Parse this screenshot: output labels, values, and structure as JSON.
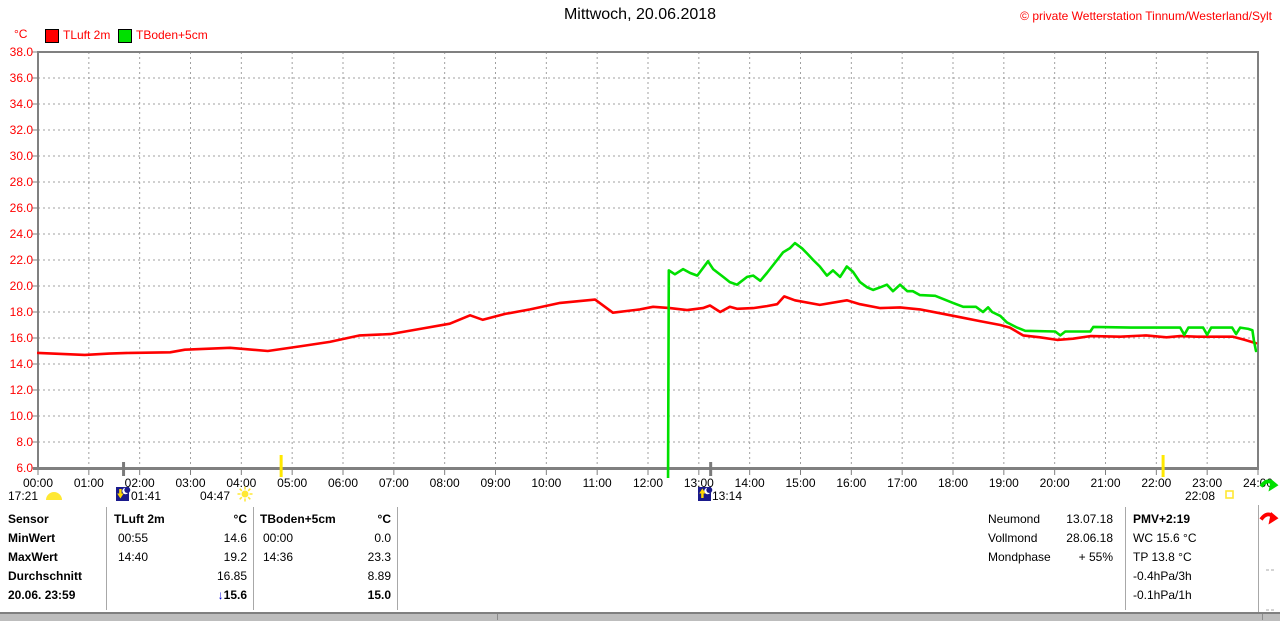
{
  "header": {
    "title": "Mittwoch, 20.06.2018",
    "copyright": "© private Wetterstation Tinnum/Westerland/Sylt"
  },
  "legend": {
    "unit": "°C"
  },
  "chart_data": {
    "type": "line",
    "title": "Mittwoch, 20.06.2018",
    "ylabel": "°C",
    "ylim": [
      6.0,
      38.0
    ],
    "ytick_step": 2.0,
    "ytick_labels": [
      "38.0",
      "36.0",
      "34.0",
      "32.0",
      "30.0",
      "28.0",
      "26.0",
      "24.0",
      "22.0",
      "20.0",
      "18.0",
      "16.0",
      "14.0",
      "12.0",
      "10.0",
      "8.0",
      "6.0"
    ],
    "xlim_hours": [
      0,
      24
    ],
    "xtick_labels": [
      "00:00",
      "01:00",
      "02:00",
      "03:00",
      "04:00",
      "05:00",
      "06:00",
      "07:00",
      "08:00",
      "09:00",
      "10:00",
      "11:00",
      "12:00",
      "13:00",
      "14:00",
      "15:00",
      "16:00",
      "17:00",
      "18:00",
      "19:00",
      "20:00",
      "21:00",
      "22:00",
      "23:00",
      "24:00"
    ],
    "grid": "dashed",
    "legend_position": "top-left",
    "series": [
      {
        "name": "TLuft 2m",
        "color": "#ff0000",
        "points": [
          [
            0,
            14.85
          ],
          [
            0.92,
            14.7
          ],
          [
            1.4,
            14.8
          ],
          [
            1.81,
            14.85
          ],
          [
            2.6,
            14.9
          ],
          [
            2.89,
            15.1
          ],
          [
            3.78,
            15.25
          ],
          [
            4.52,
            15.0
          ],
          [
            5.15,
            15.35
          ],
          [
            5.74,
            15.7
          ],
          [
            6.33,
            16.2
          ],
          [
            6.93,
            16.3
          ],
          [
            7.52,
            16.7
          ],
          [
            8.1,
            17.1
          ],
          [
            8.5,
            17.75
          ],
          [
            8.75,
            17.4
          ],
          [
            9.19,
            17.85
          ],
          [
            9.68,
            18.2
          ],
          [
            10.27,
            18.7
          ],
          [
            10.96,
            18.95
          ],
          [
            11.31,
            17.95
          ],
          [
            11.84,
            18.2
          ],
          [
            12.1,
            18.4
          ],
          [
            12.43,
            18.3
          ],
          [
            12.77,
            18.15
          ],
          [
            13.08,
            18.3
          ],
          [
            13.22,
            18.5
          ],
          [
            13.42,
            18.0
          ],
          [
            13.61,
            18.4
          ],
          [
            13.75,
            18.25
          ],
          [
            14.07,
            18.3
          ],
          [
            14.34,
            18.45
          ],
          [
            14.54,
            18.6
          ],
          [
            14.68,
            19.2
          ],
          [
            14.89,
            18.9
          ],
          [
            15.38,
            18.55
          ],
          [
            15.91,
            18.9
          ],
          [
            16.17,
            18.6
          ],
          [
            16.57,
            18.3
          ],
          [
            16.96,
            18.35
          ],
          [
            17.35,
            18.2
          ],
          [
            17.75,
            17.9
          ],
          [
            18.14,
            17.6
          ],
          [
            18.53,
            17.3
          ],
          [
            18.93,
            17.0
          ],
          [
            19.12,
            16.8
          ],
          [
            19.38,
            16.2
          ],
          [
            19.71,
            16.05
          ],
          [
            20.05,
            15.85
          ],
          [
            20.36,
            15.95
          ],
          [
            20.7,
            16.15
          ],
          [
            21.29,
            16.1
          ],
          [
            21.8,
            16.2
          ],
          [
            22.2,
            16.05
          ],
          [
            22.47,
            16.15
          ],
          [
            22.8,
            16.1
          ],
          [
            23.51,
            16.1
          ],
          [
            23.74,
            15.85
          ],
          [
            23.96,
            15.6
          ]
        ]
      },
      {
        "name": "TBoden+5cm",
        "color": "#00e000",
        "points": [
          [
            12.39,
            0.0
          ],
          [
            12.41,
            21.2
          ],
          [
            12.53,
            20.9
          ],
          [
            12.69,
            21.3
          ],
          [
            12.83,
            21.0
          ],
          [
            12.97,
            20.8
          ],
          [
            13.18,
            21.9
          ],
          [
            13.28,
            21.3
          ],
          [
            13.48,
            20.7
          ],
          [
            13.61,
            20.3
          ],
          [
            13.75,
            20.1
          ],
          [
            13.95,
            20.7
          ],
          [
            14.07,
            20.8
          ],
          [
            14.21,
            20.4
          ],
          [
            14.34,
            21.0
          ],
          [
            14.54,
            22.0
          ],
          [
            14.66,
            22.6
          ],
          [
            14.79,
            22.9
          ],
          [
            14.89,
            23.3
          ],
          [
            15.03,
            22.9
          ],
          [
            15.13,
            22.5
          ],
          [
            15.25,
            22.0
          ],
          [
            15.38,
            21.5
          ],
          [
            15.52,
            20.8
          ],
          [
            15.64,
            21.2
          ],
          [
            15.78,
            20.7
          ],
          [
            15.91,
            21.5
          ],
          [
            16.03,
            21.1
          ],
          [
            16.17,
            20.3
          ],
          [
            16.31,
            19.9
          ],
          [
            16.43,
            19.7
          ],
          [
            16.57,
            19.9
          ],
          [
            16.7,
            20.1
          ],
          [
            16.82,
            19.6
          ],
          [
            16.96,
            20.1
          ],
          [
            17.1,
            19.6
          ],
          [
            17.21,
            19.6
          ],
          [
            17.35,
            19.3
          ],
          [
            17.65,
            19.25
          ],
          [
            18.0,
            18.7
          ],
          [
            18.2,
            18.4
          ],
          [
            18.45,
            18.4
          ],
          [
            18.59,
            18.0
          ],
          [
            18.69,
            18.35
          ],
          [
            18.77,
            18.0
          ],
          [
            18.93,
            17.7
          ],
          [
            19.06,
            17.2
          ],
          [
            19.26,
            16.8
          ],
          [
            19.42,
            16.55
          ],
          [
            20.01,
            16.5
          ],
          [
            20.11,
            16.2
          ],
          [
            20.21,
            16.5
          ],
          [
            20.7,
            16.5
          ],
          [
            20.76,
            16.85
          ],
          [
            21.5,
            16.8
          ],
          [
            22.47,
            16.8
          ],
          [
            22.55,
            16.25
          ],
          [
            22.63,
            16.8
          ],
          [
            22.92,
            16.8
          ],
          [
            23.0,
            16.25
          ],
          [
            23.08,
            16.8
          ],
          [
            23.49,
            16.8
          ],
          [
            23.57,
            16.3
          ],
          [
            23.65,
            16.8
          ],
          [
            23.81,
            16.7
          ],
          [
            23.89,
            16.6
          ],
          [
            23.92,
            15.8
          ],
          [
            23.96,
            15.0
          ]
        ]
      }
    ],
    "events": [
      {
        "time": "17:21",
        "icon": "moon-symbol",
        "hour": null
      },
      {
        "time": "01:41",
        "icon": "moonset-icon",
        "hour": 1.683
      },
      {
        "time": "04:47",
        "icon": "sunrise-icon",
        "hour": 4.783
      },
      {
        "time": "13:14",
        "icon": "moonrise-icon",
        "hour": 13.233
      },
      {
        "time": "22:08",
        "icon": "sunset-icon",
        "hour": 22.133
      }
    ],
    "trend_arrows": [
      {
        "series": "TBoden+5cm",
        "direction": "falling",
        "color": "#00e000"
      },
      {
        "series": "TLuft 2m",
        "direction": "falling",
        "color": "#ff0000"
      }
    ]
  },
  "stats": {
    "row_labels": [
      "Sensor",
      "MinWert",
      "MaxWert",
      "Durchschnitt",
      "20.06. 23:59"
    ],
    "columns": [
      {
        "header": "TLuft 2m",
        "unit": "°C",
        "min_time": "00:55",
        "min_value": "14.6",
        "max_time": "14:40",
        "max_value": "19.2",
        "average": "16.85",
        "current": "15.6",
        "current_trend": "down"
      },
      {
        "header": "TBoden+5cm",
        "unit": "°C",
        "min_time": "00:00",
        "min_value": "0.0",
        "max_time": "14:36",
        "max_value": "23.3",
        "average": "8.89",
        "current": "15.0",
        "current_trend": ""
      }
    ]
  },
  "astro": {
    "new_moon_label": "Neumond",
    "new_moon": "13.07.18",
    "full_moon_label": "Vollmond",
    "full_moon": "28.06.18",
    "moon_phase_label": "Mondphase",
    "moon_phase": "+ 55%"
  },
  "info_panel": {
    "lines": [
      "PMV+2:19",
      "WC 15.6 °C",
      "TP 13.8 °C",
      "-0.4hPa/3h",
      "-0.1hPa/1h"
    ]
  }
}
